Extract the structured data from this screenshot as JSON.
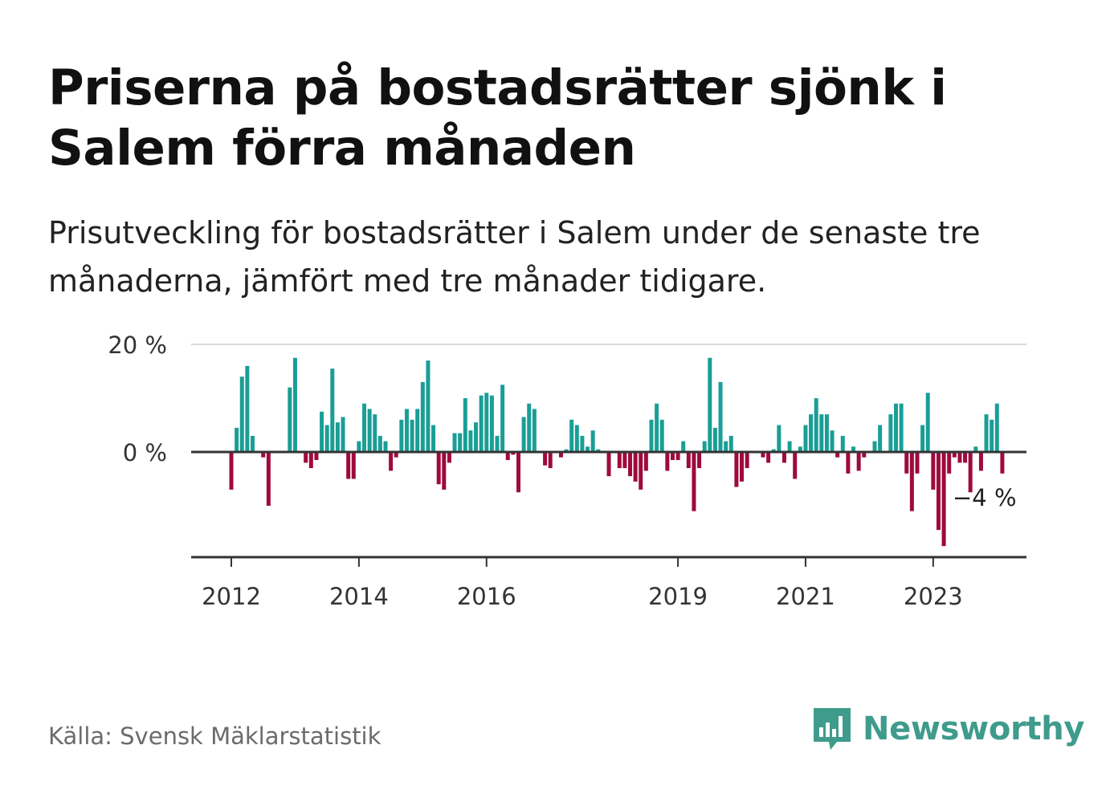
{
  "title": "Priserna på bostadsrätter sjönk i Salem förra månaden",
  "subtitle": "Prisutveckling för bostadsrätter i Salem under de senaste tre månaderna, jämfört med tre månader tidigare.",
  "source": "Källa: Svensk Mäklarstatistik",
  "brand": "Newsworthy",
  "colors": {
    "positive": "#1a9e96",
    "negative": "#9e0a3e",
    "brand": "#3f9b8c",
    "grid": "#d9d9d9",
    "axis": "#333333"
  },
  "chart_data": {
    "type": "bar",
    "title": "Prisutveckling bostadsrätter Salem",
    "ylabel": "",
    "xlabel": "",
    "unit": "%",
    "ylim": [
      -20,
      20
    ],
    "x_start": "2012-01",
    "frequency": "monthly",
    "y_ticks": [
      {
        "value": 20,
        "label": "20 %"
      },
      {
        "value": 0,
        "label": "0 %"
      }
    ],
    "x_ticks": [
      {
        "index": 0,
        "label": "2012"
      },
      {
        "index": 24,
        "label": "2014"
      },
      {
        "index": 48,
        "label": "2016"
      },
      {
        "index": 84,
        "label": "2019"
      },
      {
        "index": 108,
        "label": "2021"
      },
      {
        "index": 132,
        "label": "2023"
      }
    ],
    "last_value_label": "−4 %",
    "values": [
      -7,
      4.5,
      14,
      16,
      3,
      null,
      -1,
      -10,
      null,
      null,
      null,
      12,
      17.5,
      null,
      -2,
      -3,
      -1.5,
      7.5,
      5,
      15.5,
      5.5,
      6.5,
      -5,
      -5,
      2,
      9,
      8,
      7,
      3,
      2,
      -3.5,
      -1,
      6,
      8,
      6,
      8,
      13,
      17,
      5,
      -6,
      -7,
      -2,
      3.5,
      3.5,
      10,
      4,
      5.5,
      10.5,
      11,
      10.5,
      3,
      12.5,
      -1.5,
      -0.5,
      -7.5,
      6.5,
      9,
      8,
      null,
      -2.5,
      -3,
      null,
      -1,
      0.5,
      6,
      5,
      3,
      1,
      4,
      0.5,
      null,
      -4.5,
      null,
      -3,
      -3,
      -4.5,
      -5.5,
      -7,
      -3.5,
      6,
      9,
      6,
      -3.5,
      -1.5,
      -1.5,
      2,
      -3,
      -11,
      -3,
      2,
      17.5,
      4.5,
      13,
      2,
      3,
      -6.5,
      -5.5,
      -3,
      null,
      null,
      -1,
      -2,
      0.5,
      5,
      -2,
      2,
      -5,
      1,
      5,
      7,
      10,
      7,
      7,
      4,
      -1,
      3,
      -4,
      1,
      -3.5,
      -1,
      null,
      2,
      5,
      null,
      7,
      9,
      9,
      -4,
      -11,
      -4,
      5,
      11,
      -7,
      -14.5,
      -17.5,
      -4,
      -1,
      -2,
      -2,
      -7.5,
      1,
      -3.5,
      7,
      6,
      9,
      -4
    ]
  }
}
